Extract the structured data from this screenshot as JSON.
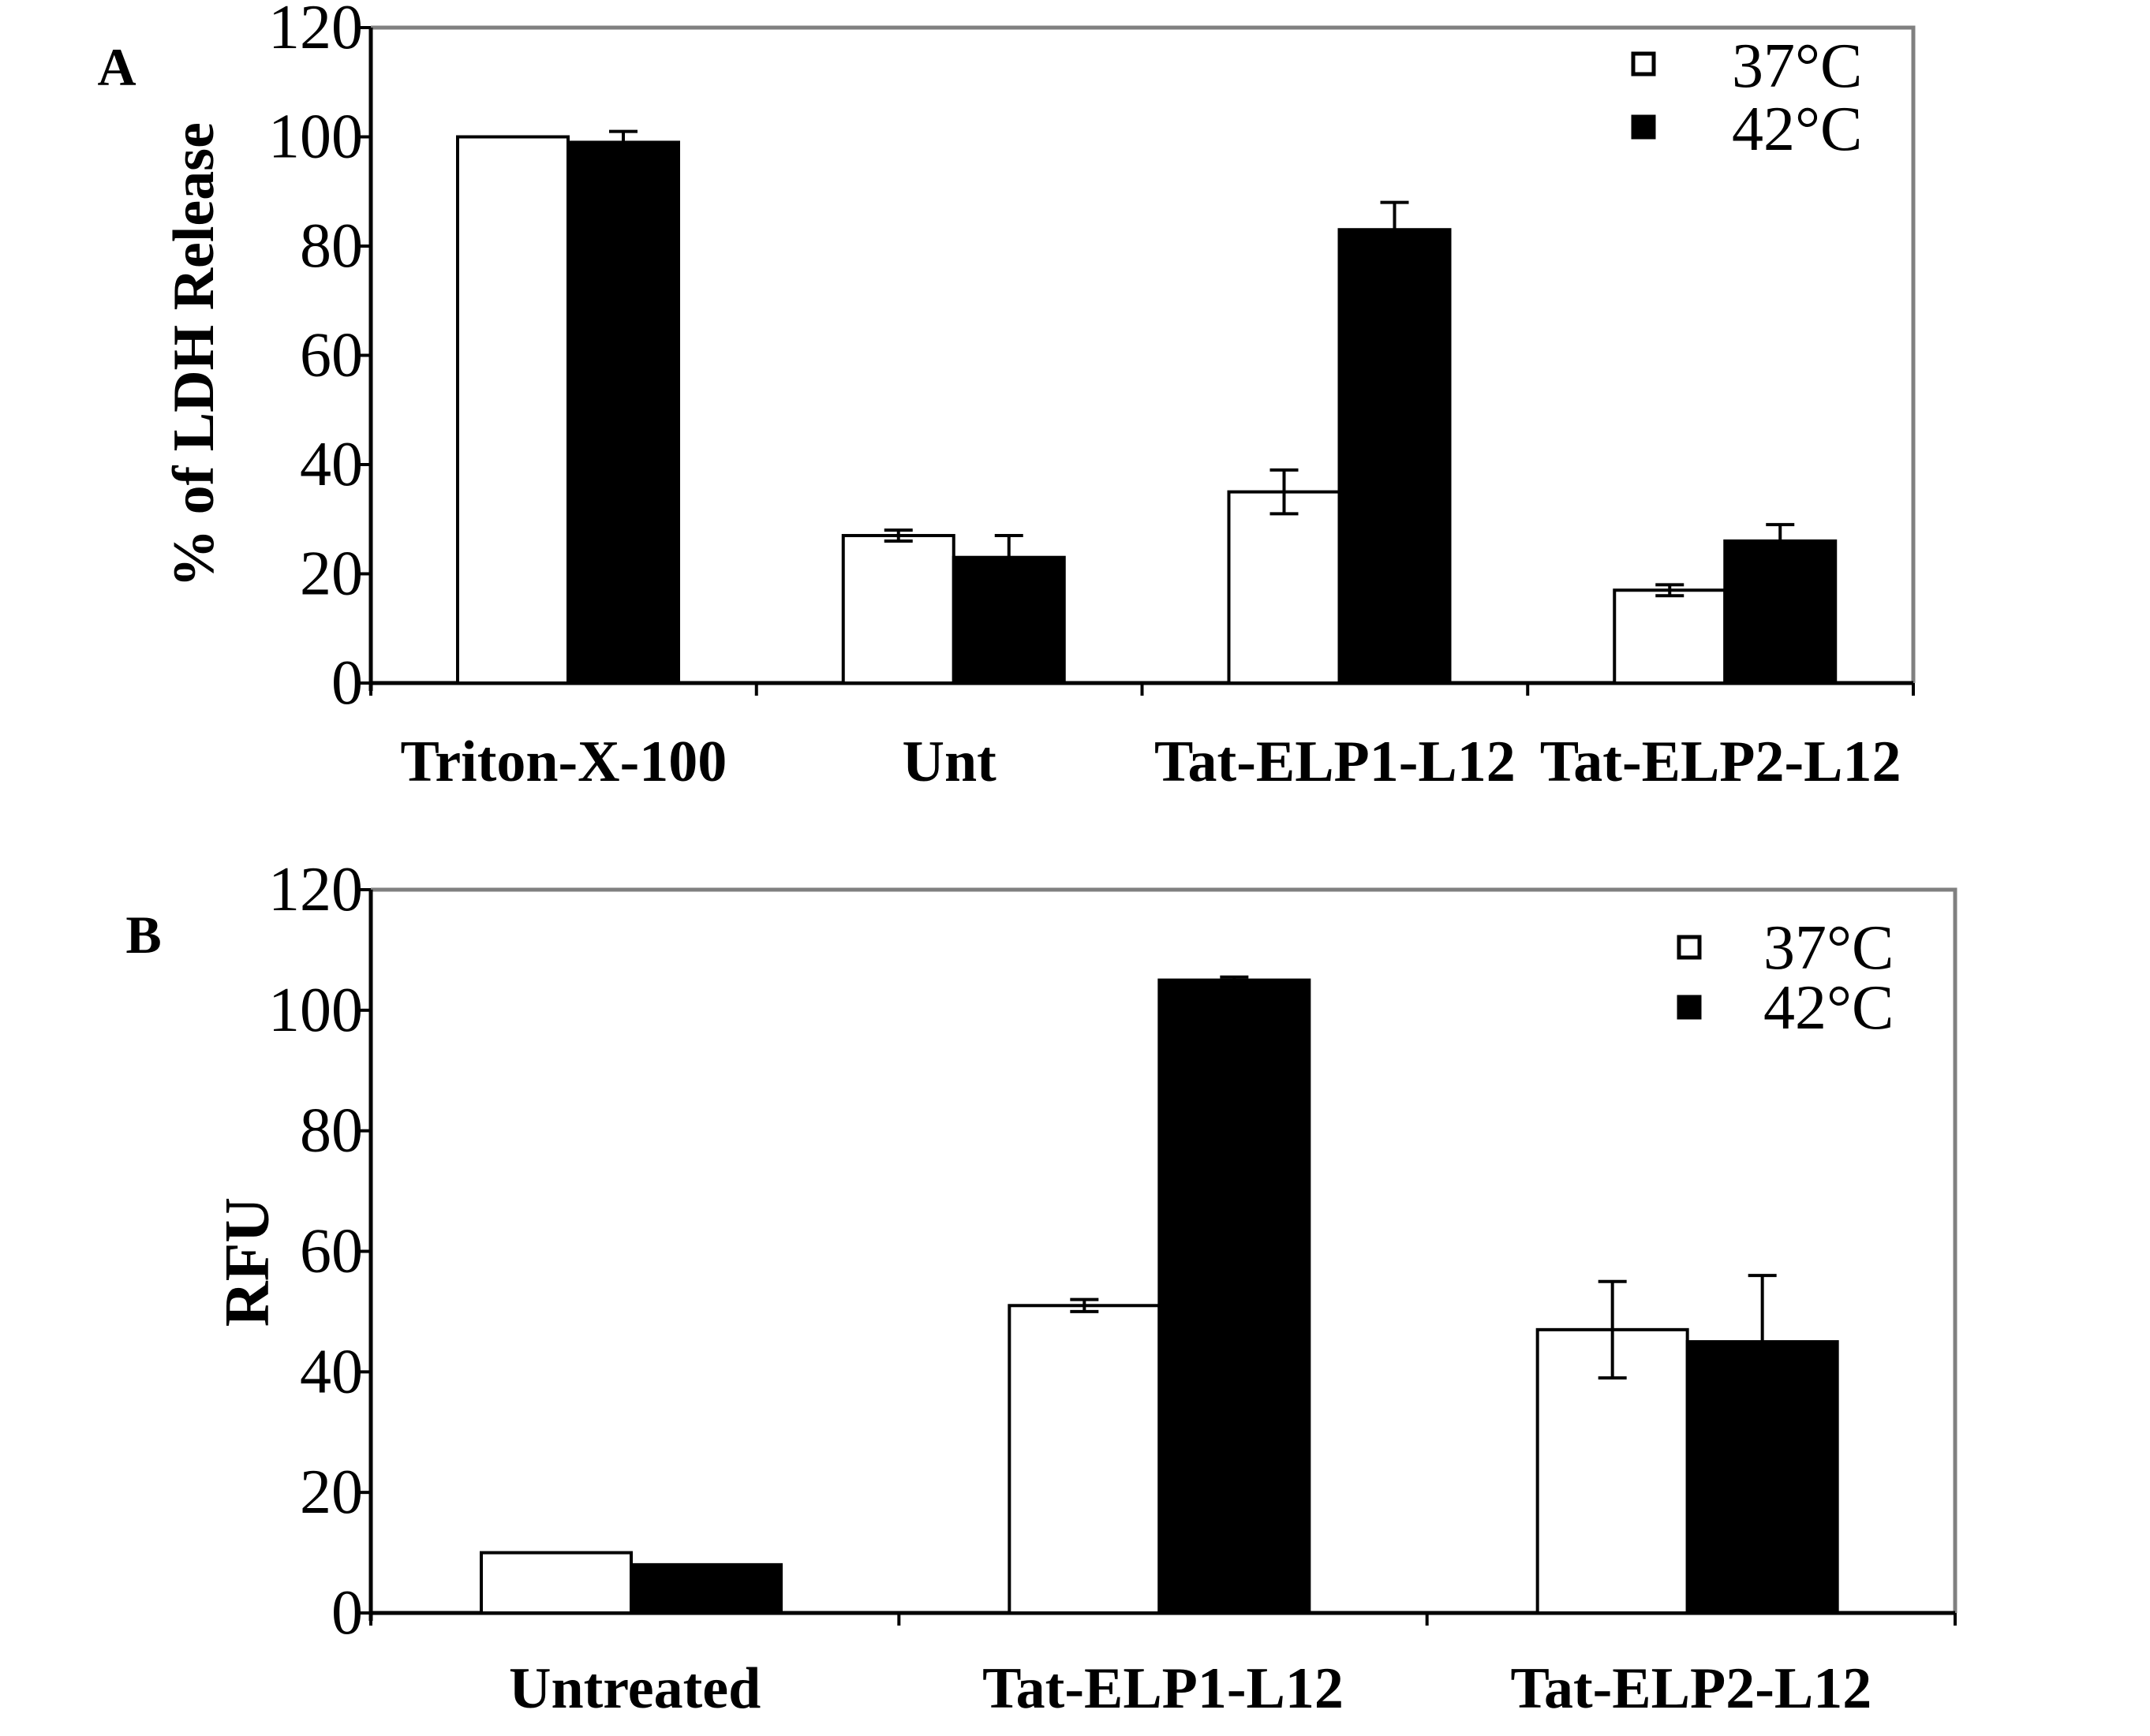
{
  "chart_data": [
    {
      "panel_label": "A",
      "type": "bar",
      "categories": [
        "Triton-X-100",
        "Unt",
        "Tat-ELP1-L12",
        "Tat-ELP2-L12"
      ],
      "series": [
        {
          "name": "37°C",
          "values": [
            100,
            27,
            35,
            17
          ],
          "errors": [
            0,
            1,
            4,
            1
          ],
          "fill": "#ffffff"
        },
        {
          "name": "42°C",
          "values": [
            99,
            23,
            83,
            26
          ],
          "errors": [
            2,
            4,
            5,
            3
          ],
          "fill": "#000000"
        }
      ],
      "ylabel": "% of LDH Release",
      "xlabel": "",
      "ylim": [
        0,
        120
      ],
      "yticks": [
        "0",
        "20",
        "40",
        "60",
        "80",
        "100",
        "120"
      ],
      "legend_position": "top-right"
    },
    {
      "panel_label": "B",
      "type": "bar",
      "categories": [
        "Untreated",
        "Tat-ELP1-L12",
        "Tat-ELP2-L12"
      ],
      "series": [
        {
          "name": "37°C",
          "values": [
            10,
            51,
            47
          ],
          "errors": [
            0,
            1,
            8
          ],
          "fill": "#ffffff"
        },
        {
          "name": "42°C",
          "values": [
            8,
            105,
            45
          ],
          "errors": [
            0,
            0.5,
            11
          ],
          "fill": "#000000"
        }
      ],
      "ylabel": "RFU",
      "xlabel": "",
      "ylim": [
        0,
        120
      ],
      "yticks": [
        "0",
        "20",
        "40",
        "60",
        "80",
        "100",
        "120"
      ],
      "legend_position": "top-right"
    }
  ],
  "colors": {
    "axis": "#000000",
    "frame": "#808080",
    "bar_open": "#ffffff",
    "bar_filled": "#000000"
  }
}
